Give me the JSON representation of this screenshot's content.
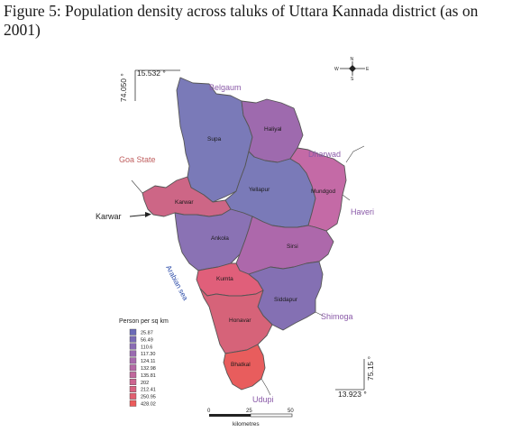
{
  "caption": "Figure 5: Population density across taluks of Uttara Kannada district (as on 2001)",
  "coords": {
    "top_lat": "15.532 °",
    "top_lon": "74.050 °",
    "bottom_lat": "13.923 °",
    "bottom_lon": "75.15 °"
  },
  "north_arrow": {
    "n": "N",
    "s": "S",
    "e": "E",
    "w": "W"
  },
  "taluks": [
    {
      "name": "Supa",
      "color": "#7a7ab8"
    },
    {
      "name": "Haliyal",
      "color": "#9e6aae"
    },
    {
      "name": "Yellapur",
      "color": "#7a7ab8"
    },
    {
      "name": "Mundgod",
      "color": "#c46aa6"
    },
    {
      "name": "Karwar",
      "color": "#cd6686"
    },
    {
      "name": "Ankola",
      "color": "#8a72b4"
    },
    {
      "name": "Sirsi",
      "color": "#ad68ab"
    },
    {
      "name": "Kumta",
      "color": "#e05f7a"
    },
    {
      "name": "Siddapur",
      "color": "#8470b3"
    },
    {
      "name": "Honavar",
      "color": "#d66379"
    },
    {
      "name": "Bhatkal",
      "color": "#e85d5d"
    }
  ],
  "neighbours": [
    {
      "name": "Belgaum",
      "color": "#8a5aa8"
    },
    {
      "name": "Dharwad",
      "color": "#8a5aa8"
    },
    {
      "name": "Goa State",
      "color": "#c06060"
    },
    {
      "name": "Haveri",
      "color": "#8a5aa8"
    },
    {
      "name": "Shimoga",
      "color": "#8a5aa8"
    },
    {
      "name": "Udupi",
      "color": "#8a5aa8"
    },
    {
      "name": "Karwar",
      "color": "#222222"
    },
    {
      "name": "Arabian sea",
      "color": "#2a4aa8"
    }
  ],
  "legend": {
    "title": "Person per sq km",
    "items": [
      {
        "label": "25.87",
        "color": "#6b6bb8"
      },
      {
        "label": "56.49",
        "color": "#7a6cb6"
      },
      {
        "label": "110.6",
        "color": "#8a6cb4"
      },
      {
        "label": "117.30",
        "color": "#996bb0"
      },
      {
        "label": "124.11",
        "color": "#a76aad"
      },
      {
        "label": "132.98",
        "color": "#b469a6"
      },
      {
        "label": "135.81",
        "color": "#c1679c"
      },
      {
        "label": "202",
        "color": "#cd6590"
      },
      {
        "label": "212.41",
        "color": "#d86280"
      },
      {
        "label": "250.95",
        "color": "#e25f70"
      },
      {
        "label": "428.02",
        "color": "#ec5c5c"
      }
    ]
  },
  "scale_bar": {
    "ticks": [
      "0",
      "25",
      "50"
    ],
    "unit": "kilometres"
  }
}
